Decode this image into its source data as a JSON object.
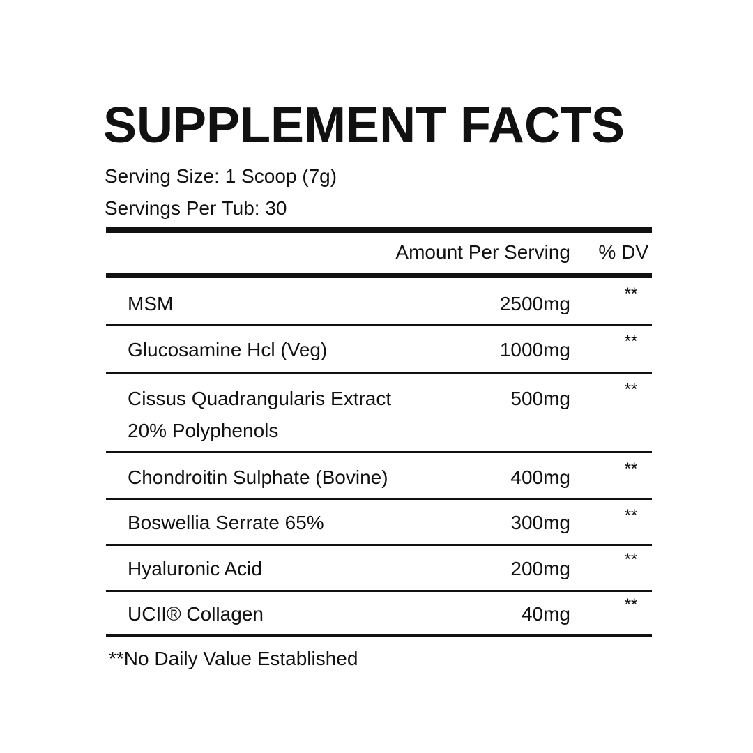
{
  "title": "SUPPLEMENT FACTS",
  "serving_size": "Serving Size: 1 Scoop (7g)",
  "servings_per": "Servings Per Tub: 30",
  "header": {
    "amount": "Amount Per Serving",
    "dv": "% DV"
  },
  "rows": [
    {
      "name": "MSM",
      "amount": "2500mg",
      "dv": "**"
    },
    {
      "name": "Glucosamine Hcl (Veg)",
      "amount": "1000mg",
      "dv": "**"
    },
    {
      "name": "Cissus Quadrangularis Extract",
      "name2": "20% Polyphenols",
      "amount": "500mg",
      "dv": "**"
    },
    {
      "name": "Chondroitin Sulphate (Bovine)",
      "amount": "400mg",
      "dv": "**"
    },
    {
      "name": "Boswellia Serrate 65%",
      "amount": "300mg",
      "dv": "**"
    },
    {
      "name": "Hyaluronic Acid",
      "amount": "200mg",
      "dv": "**"
    },
    {
      "name": "UCII® Collagen",
      "amount": "40mg",
      "dv": "**"
    }
  ],
  "footnote": "**No Daily Value Established"
}
